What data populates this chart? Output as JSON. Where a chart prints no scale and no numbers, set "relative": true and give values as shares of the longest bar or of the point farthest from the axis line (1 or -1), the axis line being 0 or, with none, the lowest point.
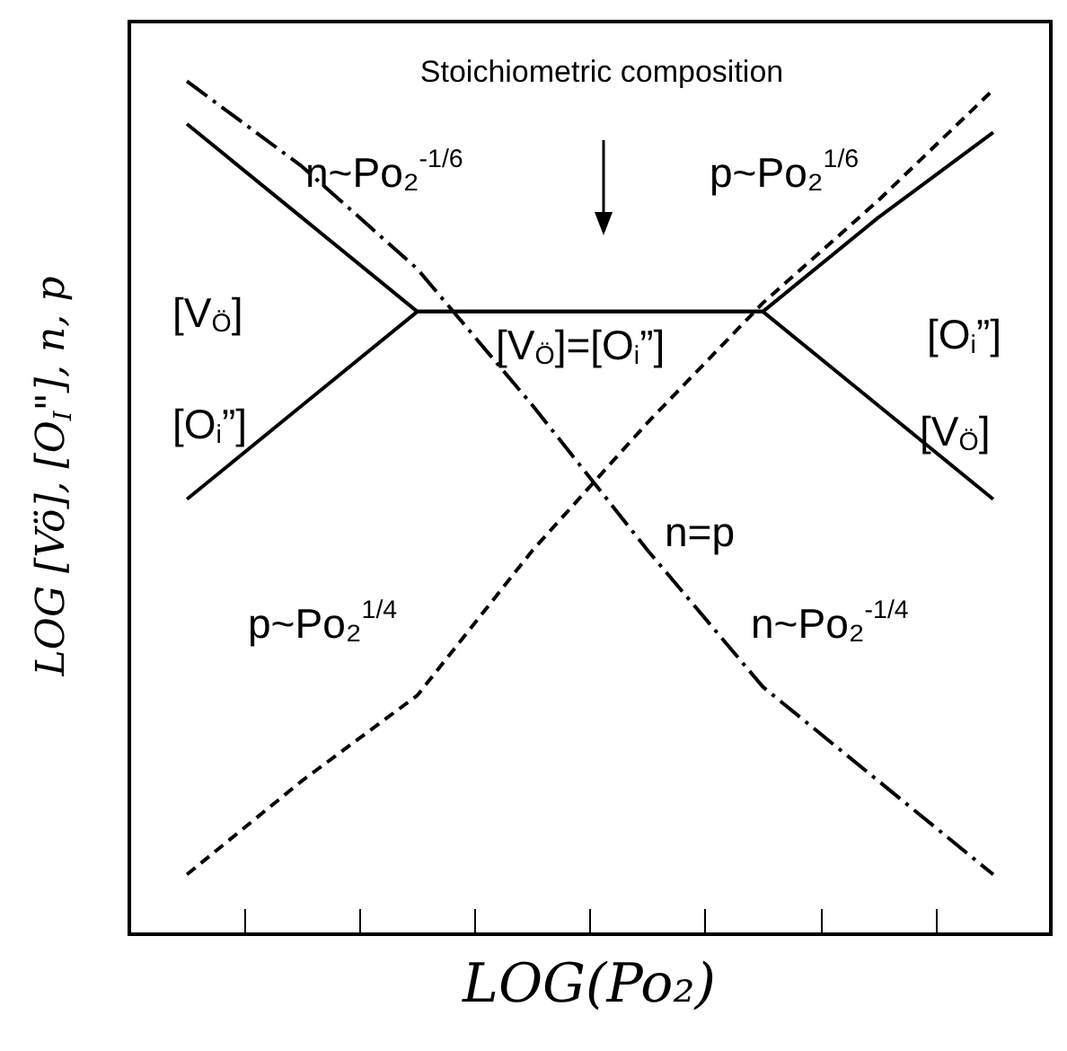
{
  "chart_data": {
    "type": "line",
    "relative": true,
    "xlabel": "LOG(Po₂)",
    "ylabel": "LOG [Vö], [O$_{I}$\"], n, p",
    "marker": "none",
    "categories": [
      null,
      null,
      null,
      null,
      null,
      null,
      null,
      null
    ],
    "series": [
      {
        "color": "#000000",
        "line_style": "dashdot",
        "values": [
          1.0,
          0.9,
          0.78,
          0.62,
          0.45,
          0.29,
          0.18,
          0.07
        ]
      },
      {
        "color": "#000000",
        "line_style": "dashed",
        "values": [
          0.07,
          0.18,
          0.28,
          0.45,
          0.6,
          0.74,
          0.86,
          0.99
        ]
      },
      {
        "color": "#000000",
        "line_style": "solid",
        "values": [
          0.95,
          0.84,
          0.73,
          0.73,
          0.73,
          0.73,
          0.62,
          0.51
        ]
      },
      {
        "color": "#000000",
        "line_style": "solid",
        "values": [
          0.51,
          0.62,
          0.73,
          0.73,
          0.73,
          0.73,
          0.84,
          0.94
        ]
      }
    ],
    "annotations": [
      "Stoichiometric composition",
      "n~Po₂$^{-1/6}$",
      "p~Po₂$^{1/6}$",
      "[V$_{Ö}$]",
      "[O$_{i}$”]",
      "[V$_{Ö}$]=[O$_{i}$”]",
      "[O$_{i}$”]",
      "[V$_{Ö}$]",
      "n=p",
      "p~Po₂$^{1/4}$",
      "n~Po₂$^{-1/4}$"
    ]
  }
}
